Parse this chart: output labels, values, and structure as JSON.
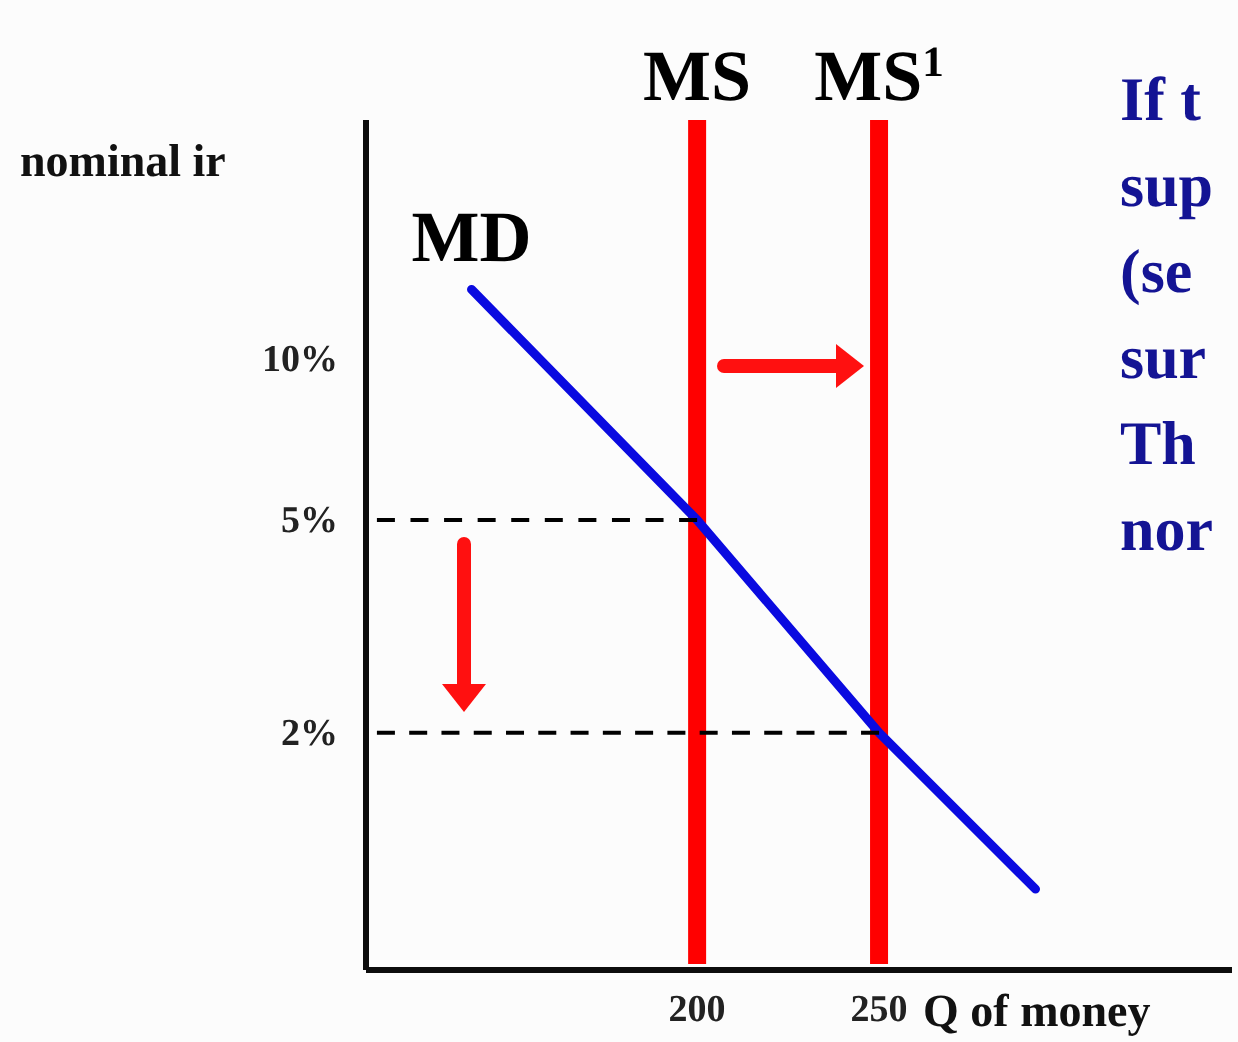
{
  "chart_data": {
    "type": "line",
    "xlabel": "Q of money",
    "ylabel": "nominal ir",
    "log": "y",
    "grid": false,
    "marker": "none",
    "xlim": [
      109,
      347
    ],
    "ylim": [
      0.72,
      28
    ],
    "xticks": [
      200,
      250
    ],
    "yticks": [
      {
        "value": 10,
        "label": "10%"
      },
      {
        "value": 5,
        "label": "5%"
      },
      {
        "value": 2,
        "label": "2%"
      }
    ],
    "series": [
      {
        "name": "MD",
        "color": "#0a0ae0",
        "x": [
          138,
          200,
          250,
          293
        ],
        "values": [
          13.5,
          5,
          2,
          1.02
        ],
        "line_style": "solid"
      },
      {
        "color": "#000000",
        "x": [
          112,
          200
        ],
        "values": [
          5,
          5
        ],
        "line_style": "dashed"
      },
      {
        "color": "#000000",
        "x": [
          112,
          250
        ],
        "values": [
          2,
          2
        ],
        "line_style": "dashed"
      }
    ],
    "ref_lines": [
      {
        "axis": "x",
        "value": 200,
        "label": "MS",
        "color": "#ff0000"
      },
      {
        "axis": "x",
        "value": 250,
        "label": "MS$^{1}$",
        "color": "#ff0000"
      }
    ],
    "annotations": [
      "If t",
      "sup",
      "(se",
      "sur",
      "Th",
      "nor"
    ]
  }
}
